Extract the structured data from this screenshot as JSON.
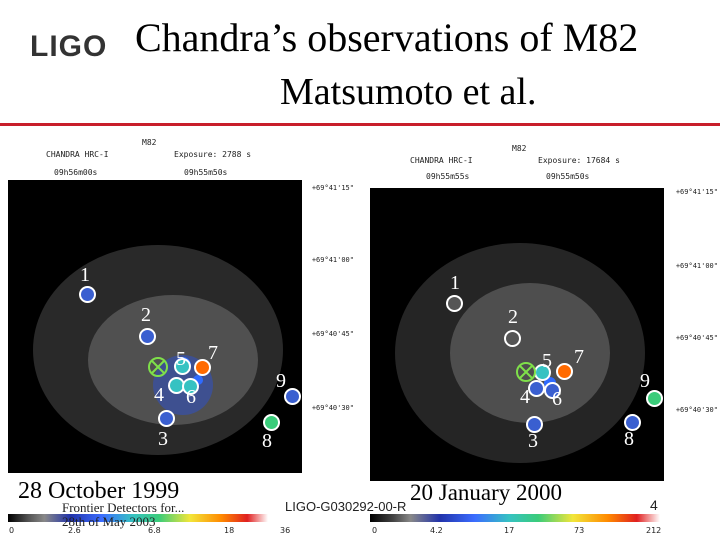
{
  "logo": "LIGO",
  "title": "Chandra’s observations of M82",
  "subtitle": "Matsumoto et al.",
  "colors": {
    "accent_rule": "#c81e2a",
    "contour_green": "#7fe04a"
  },
  "panels": [
    {
      "object": "M82",
      "instrument": "CHANDRA HRC-I",
      "exposure": "Exposure: 2788 s",
      "ra_left": "09h56m00s",
      "ra_right": "09h55m50s",
      "dec_labels": [
        "+69°41'15\"",
        "+69°41'00\"",
        "+69°40'45\"",
        "+69°40'30\""
      ],
      "date": "28 October 1999",
      "colorbar_ticks": [
        "0",
        "2.6",
        "6.8",
        "18",
        "36"
      ],
      "source_labels": [
        "1",
        "2",
        "3",
        "4",
        "5",
        "6",
        "7",
        "8",
        "9"
      ]
    },
    {
      "object": "M82",
      "instrument": "CHANDRA HRC-I",
      "exposure": "Exposure: 17684 s",
      "ra_left": "09h55m55s",
      "ra_right": "09h55m50s",
      "dec_labels": [
        "+69°41'15\"",
        "+69°41'00\"",
        "+69°40'45\"",
        "+69°40'30\""
      ],
      "date": "20 January 2000",
      "colorbar_ticks": [
        "0",
        "4.2",
        "17",
        "73",
        "212"
      ],
      "source_labels": [
        "1",
        "2",
        "3",
        "4",
        "5",
        "6",
        "7",
        "8",
        "9"
      ]
    }
  ],
  "footer": {
    "left": "Frontier Detectors for...",
    "date": "28th of May 2003",
    "doc_id": "LIGO-G030292-00-R",
    "page": "4"
  }
}
